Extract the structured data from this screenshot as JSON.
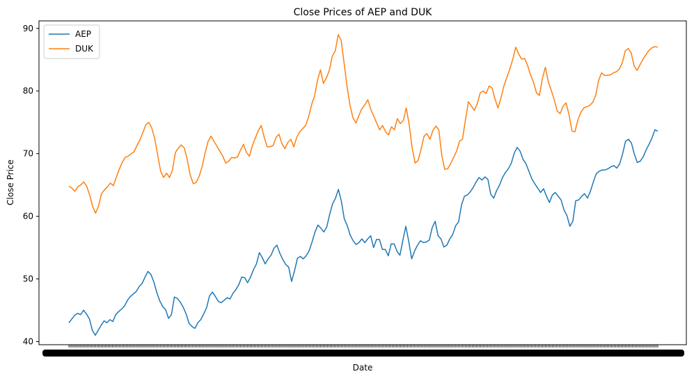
{
  "chart_data": {
    "type": "line",
    "title": "Close Prices of AEP and DUK",
    "xlabel": "Date",
    "ylabel": "Close Price",
    "ylim": [
      39.5,
      91.2
    ],
    "yticks": [
      40,
      50,
      60,
      70,
      80,
      90
    ],
    "grid": false,
    "legend_position": "top-left",
    "x_tick_labels_note": "dense overlapping date tick labels (illegible)",
    "series": [
      {
        "name": "AEP",
        "color": "#1f77b4",
        "values": [
          43.0,
          43.6,
          44.2,
          44.5,
          44.3,
          45.0,
          44.4,
          43.6,
          41.8,
          41.0,
          41.8,
          42.6,
          43.3,
          43.0,
          43.5,
          43.2,
          44.3,
          44.8,
          45.2,
          45.7,
          46.6,
          47.2,
          47.6,
          48.0,
          48.8,
          49.3,
          50.3,
          51.2,
          50.7,
          49.5,
          47.8,
          46.5,
          45.6,
          45.1,
          43.7,
          44.3,
          47.1,
          46.9,
          46.3,
          45.5,
          44.4,
          42.9,
          42.4,
          42.1,
          43.0,
          43.5,
          44.4,
          45.4,
          47.3,
          47.9,
          47.2,
          46.4,
          46.2,
          46.6,
          47.0,
          46.8,
          47.7,
          48.3,
          49.1,
          50.3,
          50.2,
          49.4,
          50.3,
          51.5,
          52.4,
          54.2,
          53.4,
          52.4,
          53.2,
          53.8,
          54.9,
          55.4,
          54.1,
          53.1,
          52.3,
          51.9,
          49.6,
          51.3,
          53.3,
          53.6,
          53.2,
          53.7,
          54.5,
          55.9,
          57.5,
          58.6,
          58.1,
          57.5,
          58.3,
          60.3,
          62.0,
          62.9,
          64.3,
          62.4,
          59.6,
          58.5,
          57.0,
          56.1,
          55.5,
          55.8,
          56.4,
          55.8,
          56.4,
          56.9,
          55.0,
          56.3,
          56.3,
          54.7,
          54.7,
          53.7,
          55.6,
          55.6,
          54.4,
          53.8,
          56.2,
          58.4,
          56.0,
          53.2,
          54.5,
          55.4,
          56.1,
          55.8,
          55.9,
          56.2,
          58.2,
          59.2,
          56.9,
          56.4,
          55.1,
          55.4,
          56.4,
          57.1,
          58.5,
          59.1,
          61.8,
          63.2,
          63.4,
          63.9,
          64.6,
          65.5,
          66.2,
          65.8,
          66.3,
          65.9,
          63.5,
          62.9,
          64.1,
          65.0,
          66.2,
          67.0,
          67.6,
          68.5,
          70.1,
          71.0,
          70.4,
          69.1,
          68.4,
          67.2,
          66.0,
          65.2,
          64.5,
          63.8,
          64.4,
          63.2,
          62.2,
          63.4,
          63.8,
          63.2,
          62.6,
          61.0,
          60.1,
          58.4,
          59.2,
          62.5,
          62.6,
          63.2,
          63.6,
          62.9,
          64.0,
          65.5,
          66.8,
          67.2,
          67.4,
          67.4,
          67.6,
          67.9,
          68.1,
          67.7,
          68.4,
          70.0,
          72.0,
          72.3,
          71.7,
          69.9,
          68.6,
          68.8,
          69.5,
          70.6,
          71.5,
          72.5,
          73.8,
          73.6
        ]
      },
      {
        "name": "DUK",
        "color": "#ff7f0e",
        "values": [
          64.8,
          64.5,
          64.0,
          64.7,
          65.0,
          65.5,
          64.8,
          63.4,
          61.6,
          60.5,
          61.6,
          63.6,
          64.2,
          64.7,
          65.3,
          64.9,
          66.2,
          67.5,
          68.6,
          69.4,
          69.6,
          70.0,
          70.3,
          71.3,
          72.2,
          73.4,
          74.6,
          75.0,
          74.1,
          72.4,
          69.8,
          67.2,
          66.2,
          66.9,
          66.2,
          67.4,
          70.2,
          70.9,
          71.4,
          70.9,
          69.0,
          66.6,
          65.2,
          65.4,
          66.4,
          67.9,
          70.1,
          71.9,
          72.8,
          72.0,
          71.2,
          70.4,
          69.6,
          68.5,
          68.8,
          69.4,
          69.3,
          69.5,
          70.6,
          71.5,
          70.2,
          69.6,
          71.3,
          72.5,
          73.7,
          74.5,
          72.6,
          71.1,
          71.1,
          71.3,
          72.6,
          73.1,
          71.6,
          70.8,
          71.8,
          72.3,
          71.1,
          72.6,
          73.5,
          74.0,
          74.5,
          75.9,
          77.8,
          79.2,
          81.7,
          83.4,
          81.2,
          82.1,
          83.3,
          85.6,
          86.4,
          89.0,
          88.1,
          84.4,
          80.7,
          77.7,
          75.7,
          74.9,
          76.1,
          77.2,
          77.8,
          78.6,
          77.1,
          76.0,
          74.9,
          73.8,
          74.5,
          73.5,
          73.0,
          74.3,
          73.8,
          75.6,
          74.8,
          75.3,
          77.3,
          74.6,
          70.9,
          68.5,
          68.9,
          70.7,
          72.8,
          73.2,
          72.3,
          73.7,
          74.4,
          73.8,
          69.7,
          67.5,
          67.6,
          68.4,
          69.4,
          70.4,
          72.0,
          72.3,
          75.4,
          78.3,
          77.6,
          76.9,
          78.0,
          79.7,
          80.0,
          79.6,
          80.8,
          80.5,
          78.7,
          77.3,
          78.9,
          80.8,
          82.2,
          83.5,
          85.1,
          87.0,
          85.9,
          85.1,
          85.2,
          84.1,
          82.6,
          81.4,
          79.7,
          79.3,
          82.0,
          83.8,
          81.5,
          80.1,
          78.6,
          76.8,
          76.4,
          77.6,
          78.1,
          76.2,
          73.6,
          73.5,
          75.4,
          76.6,
          77.3,
          77.5,
          77.7,
          78.2,
          79.3,
          81.7,
          82.9,
          82.5,
          82.5,
          82.6,
          82.9,
          83.1,
          83.5,
          84.5,
          86.4,
          86.8,
          86.1,
          84.0,
          83.3,
          84.2,
          85.1,
          85.8,
          86.5,
          86.9,
          87.1,
          87.0
        ]
      }
    ]
  }
}
